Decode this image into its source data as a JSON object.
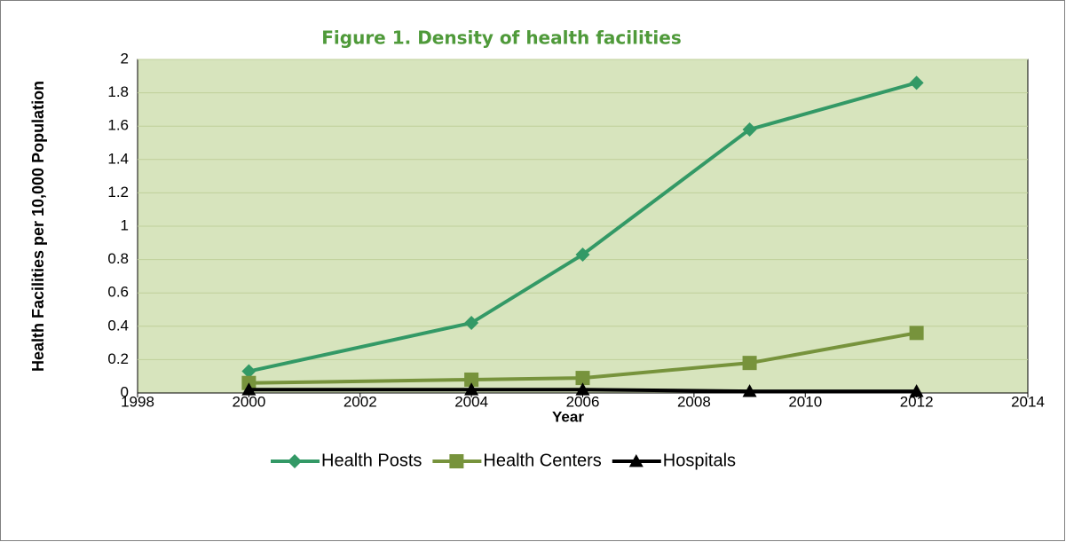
{
  "chart_data": {
    "type": "line",
    "title": "Figure 1. Density of health facilities",
    "x_label": "Year",
    "y_label": "Health Facilities per 10,000 Population",
    "x": [
      2000,
      2004,
      2006,
      2009,
      2012
    ],
    "series": [
      {
        "name": "Health Posts",
        "color": "#339966",
        "marker": "diamond",
        "values": [
          0.13,
          0.42,
          0.83,
          1.58,
          1.86
        ]
      },
      {
        "name": "Health Centers",
        "color": "#77933c",
        "marker": "square",
        "values": [
          0.06,
          0.08,
          0.09,
          0.18,
          0.36
        ]
      },
      {
        "name": "Hospitals",
        "color": "#000000",
        "marker": "triangle",
        "values": [
          0.02,
          0.02,
          0.02,
          0.01,
          0.01
        ]
      }
    ],
    "xlim": [
      1998,
      2014
    ],
    "xticks": [
      1998,
      2000,
      2002,
      2004,
      2006,
      2008,
      2010,
      2012,
      2014
    ],
    "ylim": [
      0,
      2
    ],
    "yticks": [
      0,
      0.2,
      0.4,
      0.6,
      0.8,
      1,
      1.2,
      1.4,
      1.6,
      1.8,
      2
    ],
    "grid": true,
    "legend": "bottom",
    "plot_background": "#d7e4bd"
  }
}
